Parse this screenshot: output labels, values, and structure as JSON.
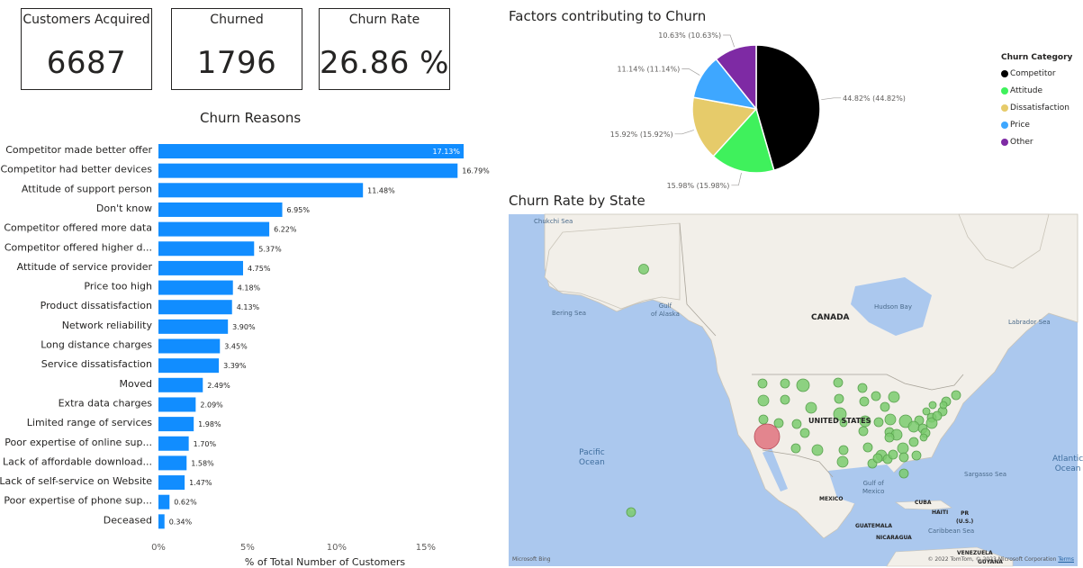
{
  "cards": [
    {
      "label": "Customers Acquired",
      "value": "6687"
    },
    {
      "label": "Churned",
      "value": "1796"
    },
    {
      "label": "Churn Rate",
      "value": "26.86 %"
    }
  ],
  "colors": {
    "bar": "#118dff",
    "competitor": "#000000",
    "attitude": "#3ff15c",
    "dissatisfaction": "#e6cb6a",
    "price": "#3ea7ff",
    "other": "#7e2aa4",
    "map_bubble": "#7bcb6f",
    "map_bubble_high": "#e0727e"
  },
  "bar_chart": {
    "title": "Churn Reasons",
    "xlabel": "% of Total Number of Customers"
  },
  "pie_chart": {
    "title": "Factors contributing to Churn"
  },
  "legend": {
    "title": "Churn Category",
    "items": [
      {
        "label": "Competitor",
        "color": "#000000"
      },
      {
        "label": "Attitude",
        "color": "#3ff15c"
      },
      {
        "label": "Dissatisfaction",
        "color": "#e6cb6a"
      },
      {
        "label": "Price",
        "color": "#3ea7ff"
      },
      {
        "label": "Other",
        "color": "#7e2aa4"
      }
    ]
  },
  "map": {
    "title": "Churn Rate by State",
    "labels": {
      "chukchi": "Chukchi Sea",
      "bering": "Bering Sea",
      "alaska_gulf": "Gulf\nof Alaska",
      "hudson": "Hudson Bay",
      "labrador": "Labrador Sea",
      "canada": "CANADA",
      "us": "UNITED STATES",
      "pacific": "Pacific\nOcean",
      "atlantic": "Atlantic\nOcean",
      "sargasso": "Sargasso Sea",
      "mexico_gulf": "Gulf of\nMexico",
      "mexico": "MEXICO",
      "cuba": "CUBA",
      "haiti": "HAITI",
      "pr": "PR\n(U.S.)",
      "caribbean": "Caribbean Sea",
      "guatemala": "GUATEMALA",
      "nicaragua": "NICARAGUA",
      "venezuela": "VENEZUELA",
      "guyana": "GUYANA"
    },
    "logo": "Microsoft Bing",
    "copyright": "© 2022 TomTom, © 2023 Microsoft Corporation",
    "terms": "Terms"
  },
  "chart_data": [
    {
      "type": "bar",
      "title": "Churn Reasons",
      "xlabel": "% of Total Number of Customers",
      "xlim": [
        0,
        17.13
      ],
      "xticks": [
        "0%",
        "5%",
        "10%",
        "15%"
      ],
      "tick_values": [
        0,
        5,
        10,
        15
      ],
      "categories": [
        "Competitor made better offer",
        "Competitor had better devices",
        "Attitude of support person",
        "Don't know",
        "Competitor offered more data",
        "Competitor offered higher d...",
        "Attitude of service provider",
        "Price too high",
        "Product dissatisfaction",
        "Network reliability",
        "Long distance charges",
        "Service dissatisfaction",
        "Moved",
        "Extra data charges",
        "Limited range of services",
        "Poor expertise of online sup...",
        "Lack of affordable download...",
        "Lack of self-service on Website",
        "Poor expertise of phone sup...",
        "Deceased"
      ],
      "values": [
        17.13,
        16.79,
        11.48,
        6.95,
        6.22,
        5.37,
        4.75,
        4.18,
        4.13,
        3.9,
        3.45,
        3.39,
        2.49,
        2.09,
        1.98,
        1.7,
        1.58,
        1.47,
        0.62,
        0.34
      ],
      "labels": [
        "17.13%",
        "16.79%",
        "11.48%",
        "6.95%",
        "6.22%",
        "5.37%",
        "4.75%",
        "4.18%",
        "4.13%",
        "3.90%",
        "3.45%",
        "3.39%",
        "2.49%",
        "2.09%",
        "1.98%",
        "1.70%",
        "1.58%",
        "1.47%",
        "0.62%",
        "0.34%"
      ]
    },
    {
      "type": "pie",
      "title": "Factors contributing to Churn",
      "legend_title": "Churn Category",
      "legend_position": "right",
      "slices": [
        {
          "name": "Competitor",
          "value": 44.82,
          "label": "44.82% (44.82%)",
          "color": "#000000"
        },
        {
          "name": "Attitude",
          "value": 15.98,
          "label": "15.98% (15.98%)",
          "color": "#3ff15c"
        },
        {
          "name": "Dissatisfaction",
          "value": 15.92,
          "label": "15.92% (15.92%)",
          "color": "#e6cb6a"
        },
        {
          "name": "Price",
          "value": 11.14,
          "label": "11.14% (11.14%)",
          "color": "#3ea7ff"
        },
        {
          "name": "Other",
          "value": 10.63,
          "label": "10.63% (10.63%)",
          "color": "#7e2aa4"
        }
      ]
    }
  ]
}
